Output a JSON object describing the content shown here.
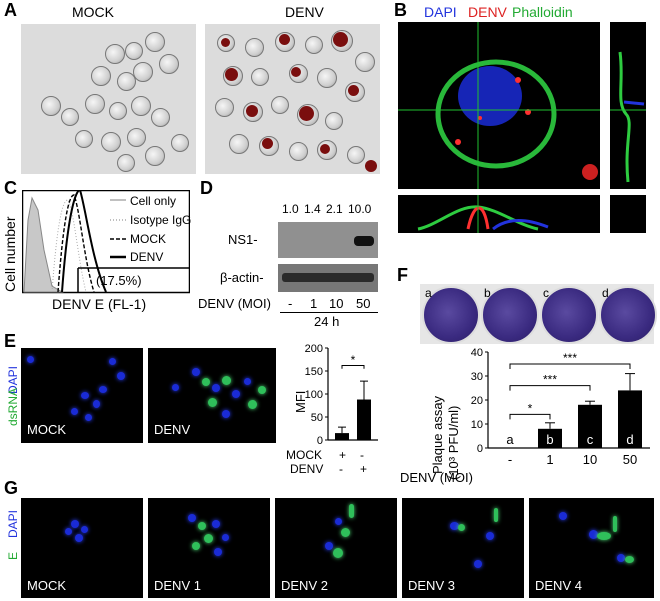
{
  "panels": {
    "A": {
      "letter": "A",
      "left_title": "MOCK",
      "right_title": "DENV"
    },
    "B": {
      "letter": "B",
      "legend": [
        {
          "text": "DAPI",
          "color": "#2233dd"
        },
        {
          "text": "DENV",
          "color": "#dd2222"
        },
        {
          "text": "Phalloidin",
          "color": "#22aa33"
        }
      ]
    },
    "C": {
      "letter": "C",
      "ylabel": "Cell number",
      "xlabel": "DENV E (FL-1)",
      "legend": [
        "Cell only",
        "Isotype IgG",
        "MOCK",
        "DENV"
      ],
      "percent": "(17.5%)"
    },
    "D": {
      "letter": "D",
      "ratios": [
        "1.0",
        "1.4",
        "2.1",
        "10.0"
      ],
      "rows": [
        "NS1-",
        "β-actin-"
      ],
      "moi_label": "DENV (MOI)",
      "moi": [
        "-",
        "1",
        "10",
        "50"
      ],
      "time": "24 h"
    },
    "E": {
      "letter": "E",
      "side_label_dapi": "DAPI",
      "side_label_dsrna": "dsRNA",
      "img_labels": [
        "MOCK",
        "DENV"
      ],
      "ylabel": "MFI",
      "yticks": [
        "0",
        "50",
        "100",
        "150",
        "200"
      ],
      "sig": "*",
      "rows": [
        {
          "name": "MOCK",
          "v": [
            "+",
            "-"
          ]
        },
        {
          "name": "DENV",
          "v": [
            "-",
            "+"
          ]
        }
      ]
    },
    "F": {
      "letter": "F",
      "dish_labels": [
        "a",
        "b",
        "c",
        "d"
      ],
      "ylabel_1": "Plaque assay",
      "ylabel_2": "(10³ PFU/ml)",
      "yticks": [
        "0",
        "10",
        "20",
        "30",
        "40"
      ],
      "sig": [
        "*",
        "***",
        "***"
      ],
      "moi_label": "DENV (MOI)",
      "moi": [
        "-",
        "1",
        "10",
        "50"
      ],
      "bar_letters": [
        "a",
        "b",
        "c",
        "d"
      ]
    },
    "G": {
      "letter": "G",
      "side_label_dapi": "DAPI",
      "side_label_e": "E",
      "img_labels": [
        "MOCK",
        "DENV 1",
        "DENV 2",
        "DENV 3",
        "DENV 4"
      ]
    }
  },
  "chart_data": [
    {
      "type": "bar",
      "title": "",
      "xlabel": "",
      "ylabel": "MFI",
      "categories": [
        "MOCK",
        "DENV"
      ],
      "values": [
        15,
        88
      ],
      "errors": [
        13,
        40
      ],
      "ylim": [
        0,
        200
      ],
      "grid": false
    },
    {
      "type": "bar",
      "title": "",
      "xlabel": "DENV (MOI)",
      "ylabel": "Plaque assay (10³ PFU/ml)",
      "categories": [
        "-",
        "1",
        "10",
        "50"
      ],
      "values": [
        0,
        8,
        18,
        24
      ],
      "errors": [
        0,
        2.5,
        1.5,
        7
      ],
      "ylim": [
        0,
        40
      ],
      "grid": false
    }
  ]
}
